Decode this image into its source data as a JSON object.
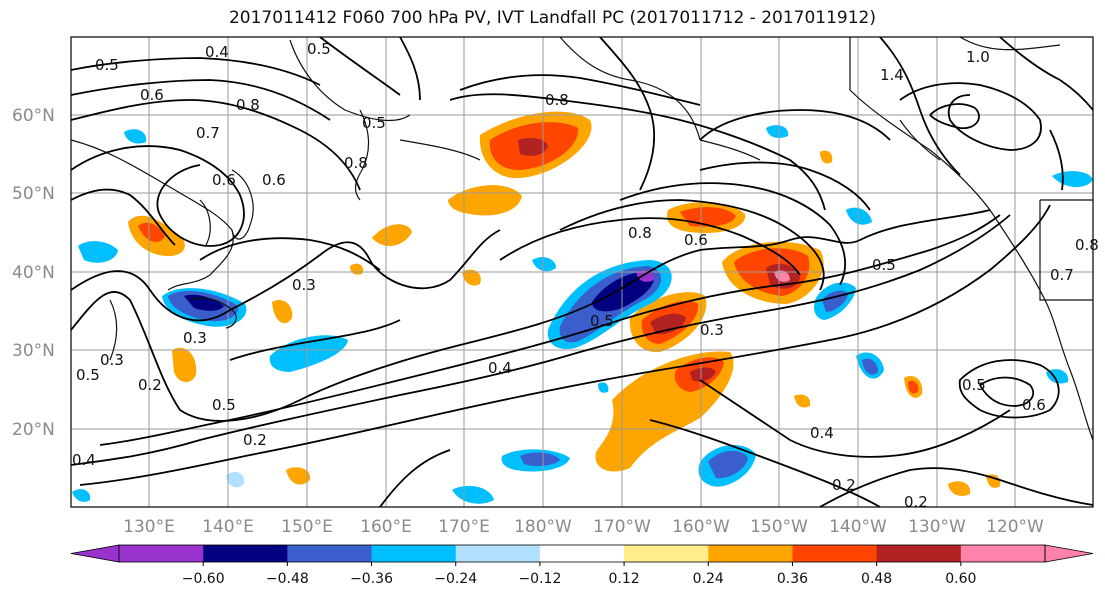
{
  "title": "2017011412 F060 700 hPa PV, IVT Landfall PC (2017011712 - 2017011912)",
  "lat_labels": [
    "60°N",
    "50°N",
    "40°N",
    "30°N",
    "20°N"
  ],
  "lon_labels": [
    "130°E",
    "140°E",
    "150°E",
    "160°E",
    "170°E",
    "180°W",
    "170°W",
    "160°W",
    "150°W",
    "140°W",
    "130°W",
    "120°W"
  ],
  "colorbar": {
    "ticks": [
      "−0.60",
      "−0.48",
      "−0.36",
      "−0.24",
      "−0.12",
      "0.12",
      "0.24",
      "0.36",
      "0.48",
      "0.60"
    ],
    "colors": [
      "#9932cc",
      "#000080",
      "#3a5fcd",
      "#00bfff",
      "#b0e2ff",
      "#ffffff",
      "#ffec8b",
      "#ffa500",
      "#ff4500",
      "#b22222",
      "#ff82ab"
    ]
  },
  "contour_labels": [
    "0.4",
    "0.5",
    "0.5",
    "0.6",
    "0.7",
    "0.8",
    "0.5",
    "0.6",
    "0.8",
    "0.6",
    "0.8",
    "0.6",
    "0.3",
    "0.3",
    "0.3",
    "0.5",
    "0.3",
    "0.5",
    "0.4",
    "0.5",
    "0.2",
    "0.4",
    "0.2",
    "0.2",
    "0.5",
    "0.6",
    "1.0",
    "1.4",
    "0.5",
    "0.7",
    "0.8",
    "0.8",
    "0.4",
    "0.2"
  ]
}
